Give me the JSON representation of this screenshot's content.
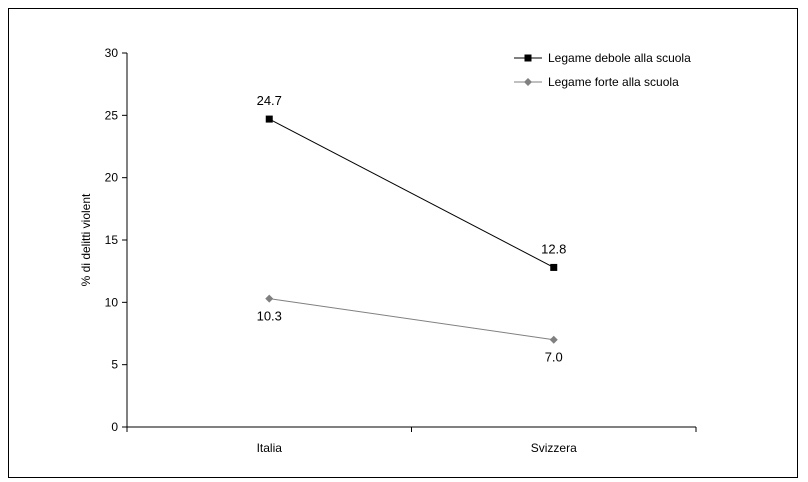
{
  "chart_data": {
    "type": "line",
    "title": "",
    "xlabel": "",
    "ylabel": "% di delitti violent",
    "categories": [
      "Italia",
      "Svizzera"
    ],
    "ylim": [
      0,
      30
    ],
    "yticks": [
      0,
      5,
      10,
      15,
      20,
      25,
      30
    ],
    "grid": false,
    "legend_position": "top-right",
    "series": [
      {
        "name": "Legame debole alla scuola",
        "values": [
          24.7,
          12.8
        ],
        "labels": [
          "24.7",
          "12.8"
        ],
        "marker": "square",
        "color": "#000000"
      },
      {
        "name": "Legame forte alla scuola",
        "values": [
          10.3,
          7.0
        ],
        "labels": [
          "10.3",
          "7.0"
        ],
        "marker": "diamond",
        "color": "#808080"
      }
    ]
  }
}
